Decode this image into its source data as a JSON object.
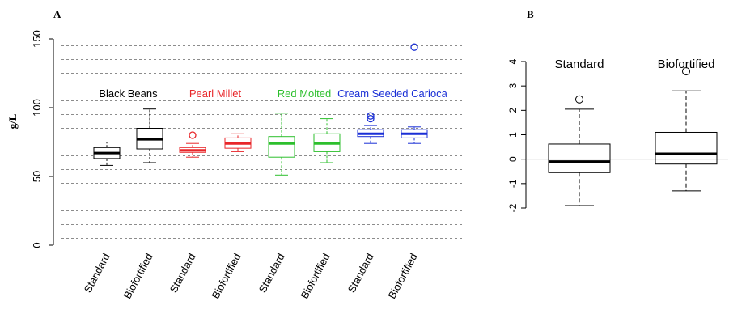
{
  "chart_data": [
    {
      "panel": "A",
      "type": "box",
      "ylabel": "g/L",
      "ylim": [
        0,
        150
      ],
      "yticks": [
        "0",
        "50",
        "100",
        "150"
      ],
      "grid": "dashed-horizontal",
      "categories": [
        "Standard",
        "Biofortified",
        "Standard",
        "Biofortified",
        "Standard",
        "Biofortified",
        "Standard",
        "Biofortified"
      ],
      "groups": [
        {
          "label": "Black Beans",
          "color": "#000000"
        },
        {
          "label": "Pearl Millet",
          "color": "#e8262a"
        },
        {
          "label": "Red Molted",
          "color": "#2dbf2d"
        },
        {
          "label": "Cream Seeded Carioca",
          "color": "#1a2fd6"
        }
      ],
      "boxes": [
        {
          "group": 0,
          "category": "Standard",
          "min": 58,
          "q1": 63,
          "median": 67,
          "q3": 71,
          "max": 75,
          "outliers": []
        },
        {
          "group": 0,
          "category": "Biofortified",
          "min": 60,
          "q1": 70,
          "median": 77,
          "q3": 85,
          "max": 99,
          "outliers": []
        },
        {
          "group": 1,
          "category": "Standard",
          "min": 64,
          "q1": 67.5,
          "median": 69,
          "q3": 71,
          "max": 74,
          "outliers": [
            80
          ]
        },
        {
          "group": 1,
          "category": "Biofortified",
          "min": 68,
          "q1": 70.5,
          "median": 74,
          "q3": 78,
          "max": 81,
          "outliers": []
        },
        {
          "group": 2,
          "category": "Standard",
          "min": 51,
          "q1": 64,
          "median": 74,
          "q3": 79,
          "max": 96,
          "outliers": []
        },
        {
          "group": 2,
          "category": "Biofortified",
          "min": 60,
          "q1": 68,
          "median": 74,
          "q3": 81,
          "max": 92,
          "outliers": []
        },
        {
          "group": 3,
          "category": "Standard",
          "min": 74,
          "q1": 79,
          "median": 81,
          "q3": 84,
          "max": 87,
          "outliers": [
            92,
            94
          ]
        },
        {
          "group": 3,
          "category": "Biofortified",
          "min": 74,
          "q1": 78,
          "median": 81,
          "q3": 84,
          "max": 86,
          "outliers": [
            144
          ]
        }
      ]
    },
    {
      "panel": "B",
      "type": "box",
      "ylim": [
        -2,
        4
      ],
      "yticks": [
        "-2",
        "-1",
        "0",
        "1",
        "2",
        "3",
        "4"
      ],
      "categories": [
        "Standard",
        "Biofortified"
      ],
      "boxes": [
        {
          "category": "Standard",
          "min": -1.9,
          "q1": -0.55,
          "median": -0.1,
          "q3": 0.62,
          "max": 2.05,
          "outliers": [
            2.45
          ]
        },
        {
          "category": "Biofortified",
          "min": -1.3,
          "q1": -0.2,
          "median": 0.22,
          "q3": 1.1,
          "max": 2.8,
          "outliers": [
            3.6
          ]
        }
      ]
    }
  ]
}
